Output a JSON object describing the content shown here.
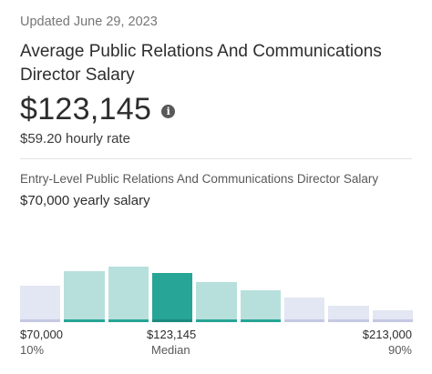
{
  "updated": "Updated June 29, 2023",
  "title": "Average Public Relations And Communications Director Salary",
  "average_salary": "$123,145",
  "info_icon": "info-icon",
  "hourly_rate": "$59.20 hourly rate",
  "entry_level": {
    "label": "Entry-Level Public Relations And Communications Director Salary",
    "salary": "$70,000 yearly salary"
  },
  "histogram": {
    "bins": [
      {
        "level": 0.48,
        "tone": "light"
      },
      {
        "level": 0.67,
        "tone": "mid"
      },
      {
        "level": 0.73,
        "tone": "mid"
      },
      {
        "level": 0.64,
        "tone": "dark"
      },
      {
        "level": 0.52,
        "tone": "mid"
      },
      {
        "level": 0.42,
        "tone": "mid"
      },
      {
        "level": 0.32,
        "tone": "light"
      },
      {
        "level": 0.22,
        "tone": "light"
      },
      {
        "level": 0.16,
        "tone": "light"
      }
    ],
    "colors": {
      "light": "#e3e6f3",
      "light_cap": "#c5c9e3",
      "mid": "#b7e0dc",
      "mid_cap": "#27a596",
      "dark": "#27a596",
      "dark_cap": "#1b8b7e"
    }
  },
  "axis": {
    "low_value": "$70,000",
    "low_pct": "10%",
    "median_value": "$123,145",
    "median_label": "Median",
    "high_value": "$213,000",
    "high_pct": "90%"
  }
}
